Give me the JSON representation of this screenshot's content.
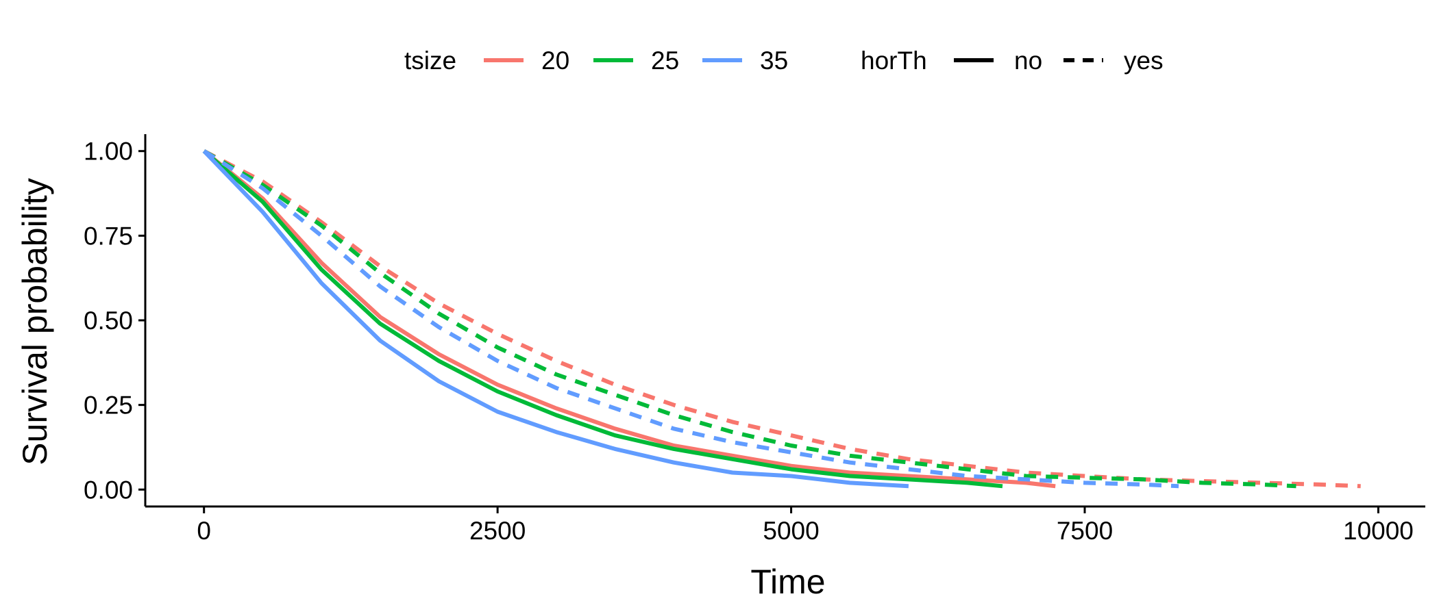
{
  "chart_data": {
    "type": "line",
    "xlabel": "Time",
    "ylabel": "Survival probability",
    "xlim": [
      -500,
      10400
    ],
    "ylim": [
      -0.05,
      1.05
    ],
    "x_ticks": [
      "0",
      "2500",
      "5000",
      "7500",
      "10000"
    ],
    "y_ticks": [
      "0.00",
      "0.25",
      "0.50",
      "0.75",
      "1.00"
    ],
    "grid": false,
    "legend_position": "top",
    "legend": {
      "color_title": "tsize",
      "color_entries": [
        {
          "label": "20",
          "color": "#F8766D"
        },
        {
          "label": "25",
          "color": "#00BA38"
        },
        {
          "label": "35",
          "color": "#619CFF"
        }
      ],
      "linetype_title": "horTh",
      "linetype_entries": [
        {
          "label": "no",
          "linetype": "solid"
        },
        {
          "label": "yes",
          "linetype": "dashed"
        }
      ]
    },
    "series": [
      {
        "tsize": "20",
        "horTh": "no",
        "color": "#F8766D",
        "linetype": "solid",
        "x": [
          0,
          500,
          1000,
          1500,
          2000,
          2500,
          3000,
          3500,
          4000,
          4500,
          5000,
          5500,
          6000,
          6500,
          7000,
          7250
        ],
        "y": [
          1.0,
          0.86,
          0.67,
          0.51,
          0.4,
          0.31,
          0.24,
          0.18,
          0.13,
          0.1,
          0.07,
          0.05,
          0.04,
          0.03,
          0.02,
          0.01
        ]
      },
      {
        "tsize": "25",
        "horTh": "no",
        "color": "#00BA38",
        "linetype": "solid",
        "x": [
          0,
          500,
          1000,
          1500,
          2000,
          2500,
          3000,
          3500,
          4000,
          4500,
          5000,
          5500,
          6000,
          6500,
          6800
        ],
        "y": [
          1.0,
          0.85,
          0.65,
          0.49,
          0.38,
          0.29,
          0.22,
          0.16,
          0.12,
          0.09,
          0.06,
          0.04,
          0.03,
          0.02,
          0.01
        ]
      },
      {
        "tsize": "35",
        "horTh": "no",
        "color": "#619CFF",
        "linetype": "solid",
        "x": [
          0,
          500,
          1000,
          1500,
          2000,
          2500,
          3000,
          3500,
          4000,
          4500,
          5000,
          5500,
          6000
        ],
        "y": [
          1.0,
          0.82,
          0.61,
          0.44,
          0.32,
          0.23,
          0.17,
          0.12,
          0.08,
          0.05,
          0.04,
          0.02,
          0.01
        ]
      },
      {
        "tsize": "20",
        "horTh": "yes",
        "color": "#F8766D",
        "linetype": "dashed",
        "x": [
          0,
          500,
          1000,
          1500,
          2000,
          2500,
          3000,
          3500,
          4000,
          4500,
          5000,
          5500,
          6000,
          6500,
          7000,
          7500,
          8000,
          8500,
          9000,
          9500,
          9850
        ],
        "y": [
          1.0,
          0.91,
          0.79,
          0.66,
          0.55,
          0.46,
          0.38,
          0.31,
          0.25,
          0.2,
          0.16,
          0.12,
          0.09,
          0.07,
          0.05,
          0.04,
          0.03,
          0.025,
          0.02,
          0.015,
          0.01
        ]
      },
      {
        "tsize": "25",
        "horTh": "yes",
        "color": "#00BA38",
        "linetype": "dashed",
        "x": [
          0,
          500,
          1000,
          1500,
          2000,
          2500,
          3000,
          3500,
          4000,
          4500,
          5000,
          5500,
          6000,
          6500,
          7000,
          7500,
          8000,
          8500,
          9000,
          9300
        ],
        "y": [
          1.0,
          0.9,
          0.78,
          0.64,
          0.52,
          0.42,
          0.34,
          0.28,
          0.22,
          0.17,
          0.13,
          0.1,
          0.08,
          0.06,
          0.04,
          0.035,
          0.03,
          0.02,
          0.015,
          0.01
        ]
      },
      {
        "tsize": "35",
        "horTh": "yes",
        "color": "#619CFF",
        "linetype": "dashed",
        "x": [
          0,
          500,
          1000,
          1500,
          2000,
          2500,
          3000,
          3500,
          4000,
          4500,
          5000,
          5500,
          6000,
          6500,
          7000,
          7500,
          8000,
          8300
        ],
        "y": [
          1.0,
          0.89,
          0.75,
          0.6,
          0.48,
          0.38,
          0.3,
          0.24,
          0.18,
          0.14,
          0.11,
          0.08,
          0.06,
          0.04,
          0.03,
          0.02,
          0.015,
          0.01
        ]
      }
    ]
  }
}
